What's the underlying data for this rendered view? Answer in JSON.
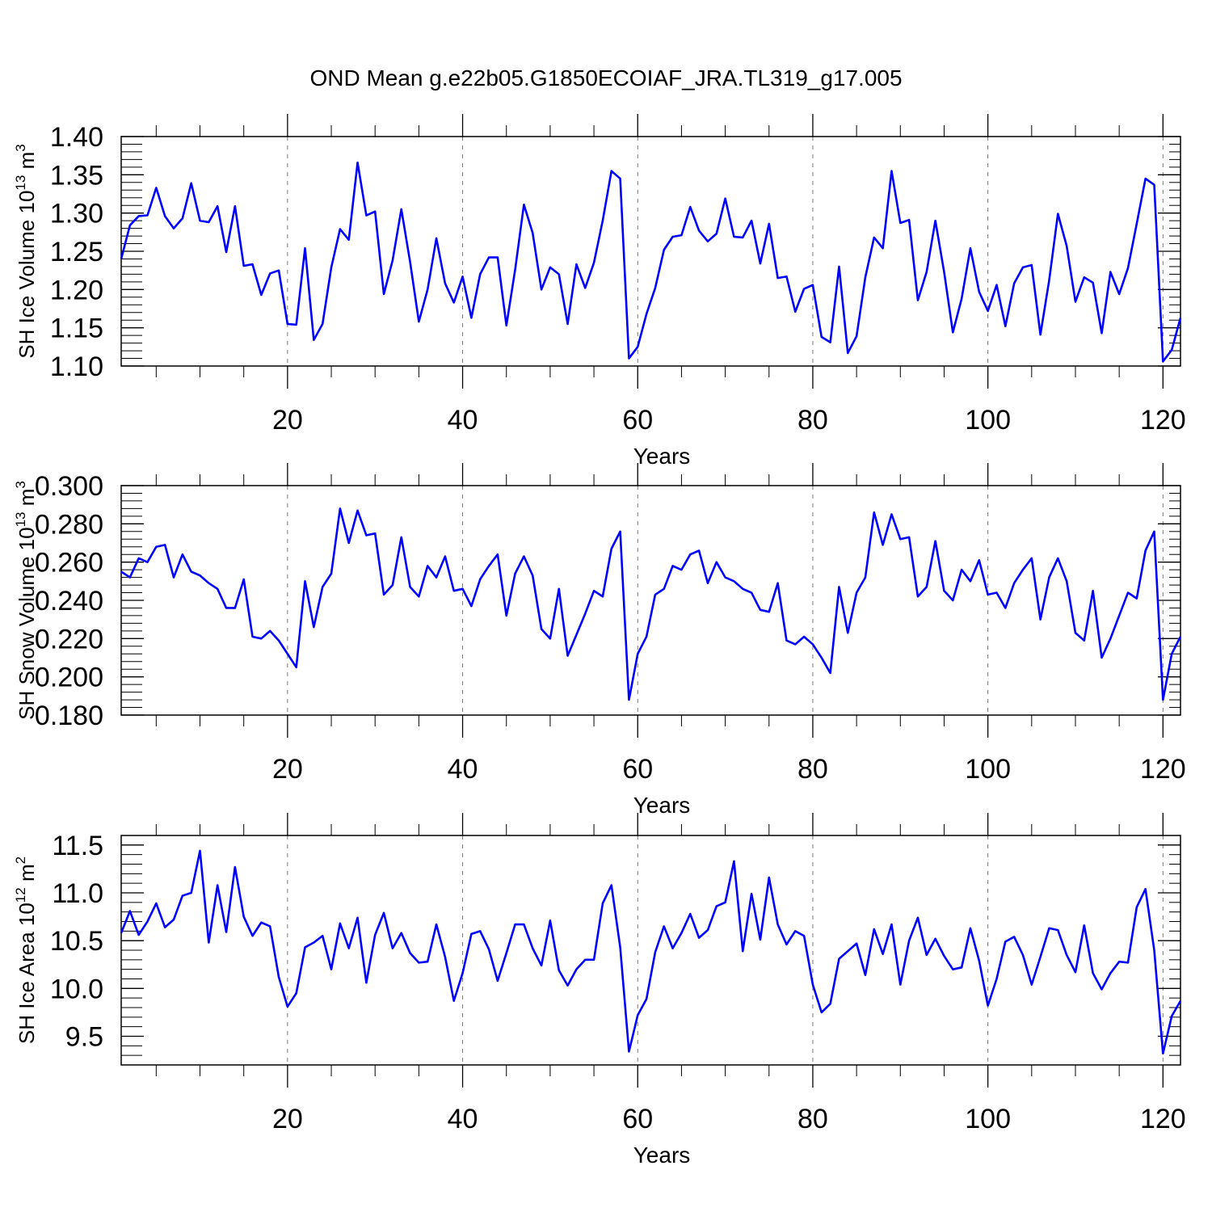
{
  "title": "OND Mean g.e22b05.G1850ECOIAF_JRA.TL319_g17.005",
  "line_color": "#0000ff",
  "chart_data": [
    {
      "type": "line",
      "id": "ice-volume",
      "ylabel_main": "SH Ice Volume 10",
      "ylabel_exp": "13",
      "ylabel_unit": " m",
      "ylabel_unit_exp": "3",
      "xlabel": "Years",
      "xlim": [
        1,
        122
      ],
      "ylim": [
        1.1,
        1.4
      ],
      "xticks": [
        20,
        40,
        60,
        80,
        100,
        120
      ],
      "xtick_labels": [
        "20",
        "40",
        "60",
        "80",
        "100",
        "120"
      ],
      "yticks": [
        1.1,
        1.15,
        1.2,
        1.25,
        1.3,
        1.35,
        1.4
      ],
      "ytick_labels": [
        "1.10",
        "1.15",
        "1.20",
        "1.25",
        "1.30",
        "1.35",
        "1.40"
      ],
      "x_start": 1,
      "values": [
        1.24,
        1.284,
        1.296,
        1.297,
        1.333,
        1.296,
        1.28,
        1.293,
        1.339,
        1.29,
        1.288,
        1.309,
        1.249,
        1.309,
        1.231,
        1.233,
        1.193,
        1.221,
        1.225,
        1.155,
        1.154,
        1.254,
        1.134,
        1.155,
        1.229,
        1.279,
        1.265,
        1.366,
        1.297,
        1.302,
        1.194,
        1.238,
        1.305,
        1.236,
        1.158,
        1.2,
        1.267,
        1.208,
        1.183,
        1.217,
        1.163,
        1.22,
        1.242,
        1.242,
        1.153,
        1.226,
        1.311,
        1.274,
        1.2,
        1.229,
        1.22,
        1.155,
        1.233,
        1.202,
        1.235,
        1.29,
        1.355,
        1.345,
        1.11,
        1.125,
        1.168,
        1.202,
        1.252,
        1.269,
        1.271,
        1.308,
        1.277,
        1.263,
        1.273,
        1.319,
        1.269,
        1.268,
        1.29,
        1.234,
        1.286,
        1.215,
        1.217,
        1.171,
        1.201,
        1.206,
        1.138,
        1.131,
        1.23,
        1.117,
        1.139,
        1.216,
        1.268,
        1.254,
        1.355,
        1.287,
        1.291,
        1.186,
        1.223,
        1.29,
        1.223,
        1.144,
        1.188,
        1.254,
        1.197,
        1.172,
        1.206,
        1.152,
        1.208,
        1.229,
        1.232,
        1.141,
        1.212,
        1.299,
        1.257,
        1.184,
        1.216,
        1.209,
        1.143,
        1.223,
        1.194,
        1.228,
        1.286,
        1.345,
        1.337,
        1.106,
        1.121,
        1.163
      ]
    },
    {
      "type": "line",
      "id": "snow-volume",
      "ylabel_main": "SH Snow Volume 10",
      "ylabel_exp": "13",
      "ylabel_unit": " m",
      "ylabel_unit_exp": "3",
      "xlabel": "Years",
      "xlim": [
        1,
        122
      ],
      "ylim": [
        0.18,
        0.3
      ],
      "xticks": [
        20,
        40,
        60,
        80,
        100,
        120
      ],
      "xtick_labels": [
        "20",
        "40",
        "60",
        "80",
        "100",
        "120"
      ],
      "yticks": [
        0.18,
        0.2,
        0.22,
        0.24,
        0.26,
        0.28,
        0.3
      ],
      "ytick_labels": [
        "0.180",
        "0.200",
        "0.220",
        "0.240",
        "0.260",
        "0.280",
        "0.300"
      ],
      "x_start": 1,
      "values": [
        0.255,
        0.252,
        0.262,
        0.26,
        0.268,
        0.269,
        0.252,
        0.264,
        0.255,
        0.253,
        0.249,
        0.246,
        0.236,
        0.236,
        0.251,
        0.221,
        0.22,
        0.224,
        0.219,
        0.212,
        0.205,
        0.25,
        0.226,
        0.247,
        0.254,
        0.288,
        0.27,
        0.287,
        0.274,
        0.275,
        0.243,
        0.248,
        0.273,
        0.247,
        0.242,
        0.258,
        0.252,
        0.263,
        0.245,
        0.246,
        0.237,
        0.251,
        0.258,
        0.264,
        0.232,
        0.254,
        0.263,
        0.253,
        0.225,
        0.22,
        0.246,
        0.211,
        0.222,
        0.233,
        0.245,
        0.242,
        0.267,
        0.276,
        0.188,
        0.212,
        0.221,
        0.243,
        0.246,
        0.258,
        0.256,
        0.264,
        0.266,
        0.249,
        0.26,
        0.252,
        0.25,
        0.246,
        0.244,
        0.235,
        0.234,
        0.249,
        0.219,
        0.217,
        0.221,
        0.217,
        0.21,
        0.202,
        0.247,
        0.223,
        0.244,
        0.252,
        0.286,
        0.269,
        0.285,
        0.272,
        0.273,
        0.242,
        0.247,
        0.271,
        0.245,
        0.24,
        0.256,
        0.25,
        0.261,
        0.243,
        0.244,
        0.236,
        0.249,
        0.256,
        0.262,
        0.23,
        0.252,
        0.262,
        0.25,
        0.223,
        0.219,
        0.245,
        0.21,
        0.22,
        0.232,
        0.244,
        0.241,
        0.266,
        0.276,
        0.188,
        0.212,
        0.221
      ]
    },
    {
      "type": "line",
      "id": "ice-area",
      "ylabel_main": "SH Ice Area 10",
      "ylabel_exp": "12",
      "ylabel_unit": " m",
      "ylabel_unit_exp": "2",
      "xlabel": "Years",
      "xlim": [
        1,
        122
      ],
      "ylim": [
        9.2,
        11.6
      ],
      "xticks": [
        20,
        40,
        60,
        80,
        100,
        120
      ],
      "xtick_labels": [
        "20",
        "40",
        "60",
        "80",
        "100",
        "120"
      ],
      "yticks": [
        9.5,
        10.0,
        10.5,
        11.0,
        11.5
      ],
      "ytick_labels": [
        "9.5",
        "10.0",
        "10.5",
        "11.0",
        "11.5"
      ],
      "x_start": 1,
      "values": [
        10.58,
        10.81,
        10.56,
        10.7,
        10.89,
        10.64,
        10.72,
        10.97,
        11.0,
        11.44,
        10.48,
        11.08,
        10.59,
        11.27,
        10.75,
        10.55,
        10.69,
        10.65,
        10.12,
        9.81,
        9.95,
        10.43,
        10.48,
        10.55,
        10.2,
        10.68,
        10.42,
        10.74,
        10.06,
        10.56,
        10.79,
        10.42,
        10.58,
        10.37,
        10.27,
        10.28,
        10.67,
        10.33,
        9.87,
        10.16,
        10.57,
        10.6,
        10.41,
        10.08,
        10.37,
        10.67,
        10.67,
        10.42,
        10.24,
        10.71,
        10.19,
        10.03,
        10.2,
        10.3,
        10.3,
        10.89,
        11.08,
        10.43,
        9.34,
        9.72,
        9.89,
        10.38,
        10.65,
        10.42,
        10.58,
        10.78,
        10.53,
        10.61,
        10.86,
        10.9,
        11.33,
        10.39,
        10.99,
        10.51,
        11.16,
        10.67,
        10.46,
        10.6,
        10.55,
        10.04,
        9.75,
        9.84,
        10.31,
        10.39,
        10.47,
        10.14,
        10.62,
        10.36,
        10.67,
        10.04,
        10.5,
        10.74,
        10.35,
        10.52,
        10.34,
        10.2,
        10.22,
        10.63,
        10.29,
        9.82,
        10.1,
        10.49,
        10.54,
        10.35,
        10.04,
        10.33,
        10.63,
        10.61,
        10.35,
        10.17,
        10.66,
        10.16,
        9.99,
        10.16,
        10.28,
        10.27,
        10.85,
        11.04,
        10.4,
        9.32,
        9.71,
        9.87
      ]
    }
  ]
}
